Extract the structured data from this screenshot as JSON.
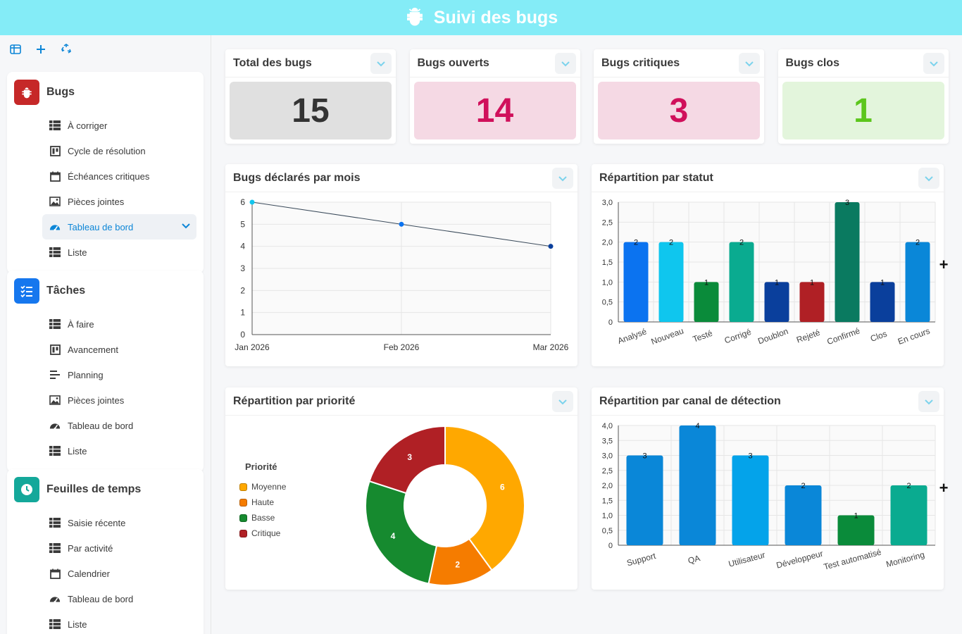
{
  "header": {
    "title": "Suivi des bugs",
    "icon": "bug-icon"
  },
  "sidebar": {
    "tools": [
      "panel-icon",
      "plus-icon",
      "recycle-icon"
    ],
    "groups": [
      {
        "title": "Bugs",
        "icon": "bug-icon",
        "color": "#c62828",
        "items": [
          {
            "label": "À corriger",
            "icon": "table-icon"
          },
          {
            "label": "Cycle de résolution",
            "icon": "kanban-icon"
          },
          {
            "label": "Échéances critiques",
            "icon": "calendar-icon"
          },
          {
            "label": "Pièces jointes",
            "icon": "image-icon"
          },
          {
            "label": "Tableau de bord",
            "icon": "gauge-icon",
            "active": true
          },
          {
            "label": "Liste",
            "icon": "table-icon"
          }
        ]
      },
      {
        "title": "Tâches",
        "icon": "checklist-icon",
        "color": "#1677ee",
        "items": [
          {
            "label": "À faire",
            "icon": "table-icon"
          },
          {
            "label": "Avancement",
            "icon": "kanban-icon"
          },
          {
            "label": "Planning",
            "icon": "gantt-icon"
          },
          {
            "label": "Pièces jointes",
            "icon": "image-icon"
          },
          {
            "label": "Tableau de bord",
            "icon": "gauge-icon"
          },
          {
            "label": "Liste",
            "icon": "table-icon"
          }
        ]
      },
      {
        "title": "Feuilles de temps",
        "icon": "clock-icon",
        "color": "#14a89a",
        "items": [
          {
            "label": "Saisie récente",
            "icon": "table-icon"
          },
          {
            "label": "Par activité",
            "icon": "table-icon"
          },
          {
            "label": "Calendrier",
            "icon": "calendar-icon"
          },
          {
            "label": "Tableau de bord",
            "icon": "gauge-icon"
          },
          {
            "label": "Liste",
            "icon": "table-icon"
          }
        ]
      }
    ]
  },
  "kpis": [
    {
      "title": "Total des bugs",
      "value": "15",
      "bg": "#e0e0e0",
      "fg": "#333333"
    },
    {
      "title": "Bugs ouverts",
      "value": "14",
      "bg": "#f5d9e4",
      "fg": "#d0105b"
    },
    {
      "title": "Bugs critiques",
      "value": "3",
      "bg": "#f5d9e4",
      "fg": "#d0105b"
    },
    {
      "title": "Bugs clos",
      "value": "1",
      "bg": "#e3f5dc",
      "fg": "#5cc61c"
    }
  ],
  "charts": {
    "monthly": {
      "title": "Bugs déclarés par mois"
    },
    "status": {
      "title": "Répartition par statut"
    },
    "priority": {
      "title": "Répartition par priorité",
      "legend_title": "Priorité"
    },
    "channel": {
      "title": "Répartition par canal de détection"
    }
  },
  "chart_data": [
    {
      "type": "line",
      "x": [
        "Jan 2026",
        "Feb 2026",
        "Mar 2026"
      ],
      "values": [
        6,
        5,
        4
      ],
      "ylim": [
        0,
        6
      ],
      "yticks": [
        "0",
        "1",
        "2",
        "3",
        "4",
        "5",
        "6"
      ],
      "grid": true
    },
    {
      "type": "bar",
      "categories": [
        "Analysé",
        "Nouveau",
        "Testé",
        "Corrigé",
        "Doublon",
        "Rejeté",
        "Confirmé",
        "Clos",
        "En cours"
      ],
      "values": [
        2,
        2,
        1,
        2,
        1,
        1,
        3,
        1,
        2
      ],
      "colors": [
        "#0b73f0",
        "#0fc6ee",
        "#0a8b3a",
        "#0aab90",
        "#0a3f9c",
        "#b02025",
        "#0a7a60",
        "#0a3f9c",
        "#0a87d8"
      ],
      "ylim": [
        0,
        3
      ],
      "yticks": [
        "0",
        "0,5",
        "1,0",
        "1,5",
        "2,0",
        "2,5",
        "3,0"
      ],
      "grid": true
    },
    {
      "type": "pie",
      "categories": [
        "Moyenne",
        "Haute",
        "Basse",
        "Critique"
      ],
      "values": [
        6,
        2,
        4,
        3
      ],
      "colors": [
        "#ffa800",
        "#f57c00",
        "#168a2f",
        "#b02025"
      ],
      "legend": "left"
    },
    {
      "type": "bar",
      "categories": [
        "Support",
        "QA",
        "Utilisateur",
        "Développeur",
        "Test automatisé",
        "Monitoring"
      ],
      "values": [
        3,
        4,
        3,
        2,
        1,
        2
      ],
      "colors": [
        "#0a87d8",
        "#0a87d8",
        "#04a3ea",
        "#0a87d8",
        "#0a8b3a",
        "#0aab90"
      ],
      "ylim": [
        0,
        4
      ],
      "yticks": [
        "0",
        "0,5",
        "1,0",
        "1,5",
        "2,0",
        "2,5",
        "3,0",
        "3,5",
        "4,0"
      ],
      "grid": true
    }
  ]
}
